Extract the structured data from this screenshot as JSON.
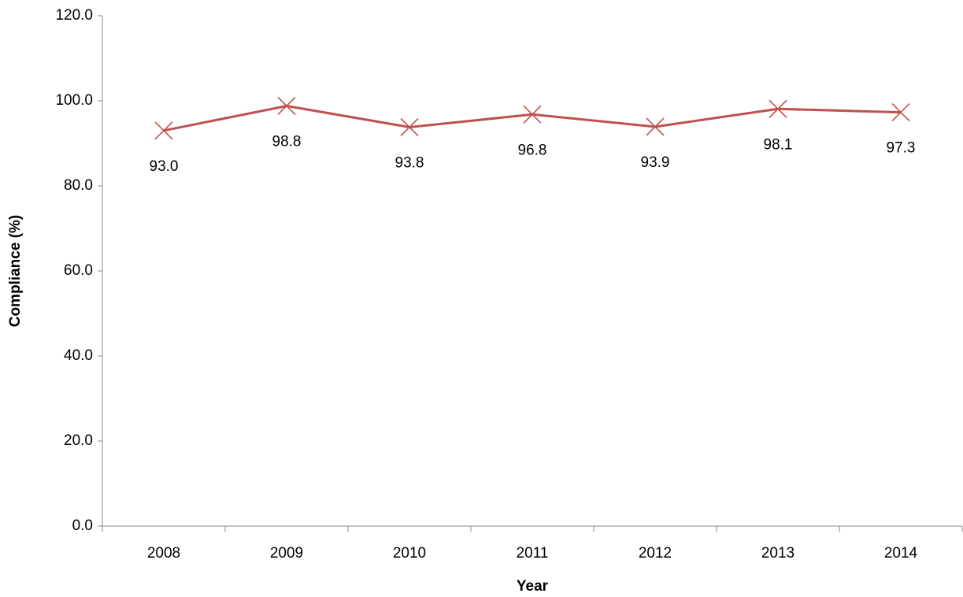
{
  "chart_data": {
    "type": "line",
    "x_label": "Year",
    "y_label": "Compliance (%)",
    "categories": [
      "2008",
      "2009",
      "2010",
      "2011",
      "2012",
      "2013",
      "2014"
    ],
    "values": [
      93.0,
      98.8,
      93.8,
      96.8,
      93.9,
      98.1,
      97.3
    ],
    "value_labels": [
      "93.0",
      "98.8",
      "93.8",
      "96.8",
      "93.9",
      "98.1",
      "97.3"
    ],
    "color": "#c0504d",
    "marker": "x",
    "grid": false,
    "ylim": [
      0,
      120
    ],
    "yticks": [
      {
        "value": 0,
        "label": "0.0"
      },
      {
        "value": 20,
        "label": "20.0"
      },
      {
        "value": 40,
        "label": "40.0"
      },
      {
        "value": 60,
        "label": "60.0"
      },
      {
        "value": 80,
        "label": "80.0"
      },
      {
        "value": 100,
        "label": "100.0"
      },
      {
        "value": 120,
        "label": "120.0"
      }
    ]
  }
}
